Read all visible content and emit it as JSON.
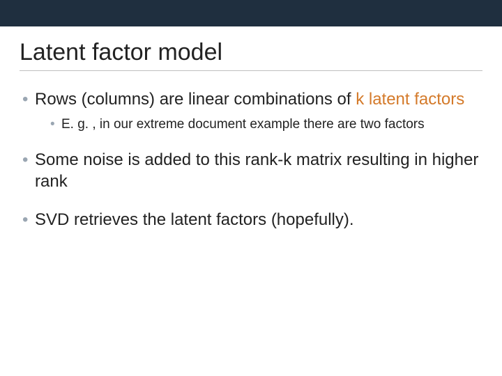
{
  "slide": {
    "top_bar_color": "#1f2f3f",
    "background_color": "#ffffff",
    "title": "Latent factor model",
    "title_color": "#222222",
    "title_fontsize": 34,
    "body_fontsize_l1": 24,
    "body_fontsize_l2": 19,
    "bullet_color": "#9aa6b2",
    "accent_color": "#d47a2a",
    "items": [
      {
        "pre": "Rows (columns) are linear combinations of ",
        "accent": "k latent factors",
        "post": "",
        "sub": [
          {
            "text": "E. g. , in our extreme document example there are two factors"
          }
        ]
      },
      {
        "pre": "Some ",
        "mid": "noise",
        "post": " is added to this rank-k matrix resulting in higher rank"
      },
      {
        "pre": "SVD retrieves the latent factors (hopefully)."
      }
    ]
  }
}
